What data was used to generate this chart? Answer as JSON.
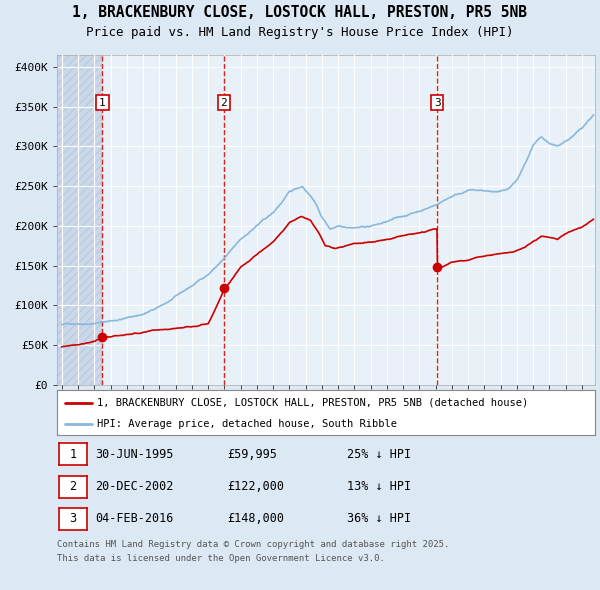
{
  "title": "1, BRACKENBURY CLOSE, LOSTOCK HALL, PRESTON, PR5 5NB",
  "subtitle": "Price paid vs. HM Land Registry's House Price Index (HPI)",
  "bg_color": "#dde8f5",
  "plot_bg_color": "#e8f0f8",
  "hpi_color": "#89b8dc",
  "price_color": "#cc0000",
  "vline_color": "#cc0000",
  "sales": [
    {
      "date_num": 1995.49,
      "price": 59995,
      "label": "1",
      "date_str": "30-JUN-1995",
      "price_str": "£59,995",
      "pct": "25% ↓ HPI"
    },
    {
      "date_num": 2002.97,
      "price": 122000,
      "label": "2",
      "date_str": "20-DEC-2002",
      "price_str": "£122,000",
      "pct": "13% ↓ HPI"
    },
    {
      "date_num": 2016.09,
      "price": 148000,
      "label": "3",
      "date_str": "04-FEB-2016",
      "price_str": "£148,000",
      "pct": "36% ↓ HPI"
    }
  ],
  "ylabel_ticks": [
    "£0",
    "£50K",
    "£100K",
    "£150K",
    "£200K",
    "£250K",
    "£300K",
    "£350K",
    "£400K"
  ],
  "ytick_values": [
    0,
    50000,
    100000,
    150000,
    200000,
    250000,
    300000,
    350000,
    400000
  ],
  "ylim": [
    0,
    415000
  ],
  "xlim_start": 1992.7,
  "xlim_end": 2025.8,
  "legend_line1": "1, BRACKENBURY CLOSE, LOSTOCK HALL, PRESTON, PR5 5NB (detached house)",
  "legend_line2": "HPI: Average price, detached house, South Ribble",
  "footer1": "Contains HM Land Registry data © Crown copyright and database right 2025.",
  "footer2": "This data is licensed under the Open Government Licence v3.0."
}
